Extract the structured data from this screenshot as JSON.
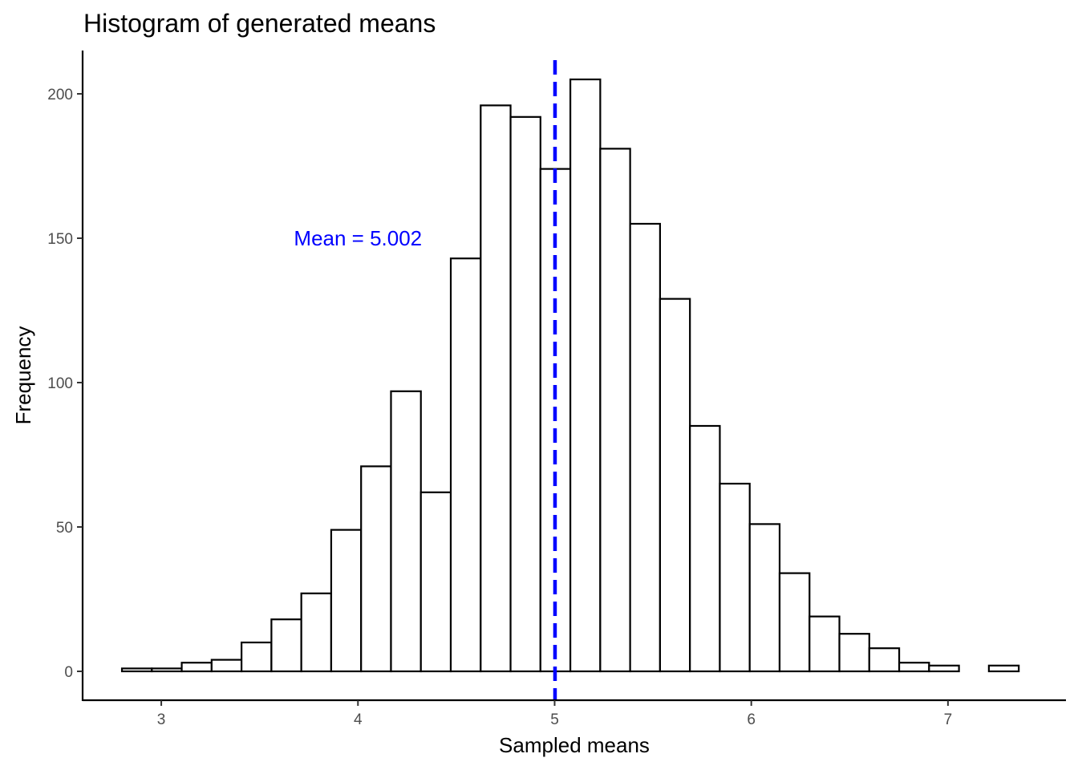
{
  "chart_data": {
    "type": "bar",
    "title": "Histogram of generated means",
    "xlabel": "Sampled means",
    "ylabel": "Frequency",
    "xlim": [
      2.6,
      7.6
    ],
    "ylim": [
      -10,
      215
    ],
    "x_ticks": [
      3,
      4,
      5,
      6,
      7
    ],
    "y_ticks": [
      0,
      50,
      100,
      150,
      200
    ],
    "bin_width": 0.152,
    "bin_start": 2.8,
    "values": [
      1,
      1,
      3,
      4,
      10,
      18,
      27,
      49,
      71,
      97,
      62,
      143,
      196,
      192,
      174,
      205,
      181,
      155,
      129,
      85,
      65,
      51,
      34,
      19,
      13,
      8,
      3,
      2,
      0,
      2
    ],
    "grid": false,
    "mean_line": {
      "value": 5.002,
      "color": "#0000ff",
      "style": "dashed"
    },
    "annotation": {
      "text": "Mean = 5.002",
      "x": 4.0,
      "y": 150,
      "color": "#0000ff"
    }
  }
}
